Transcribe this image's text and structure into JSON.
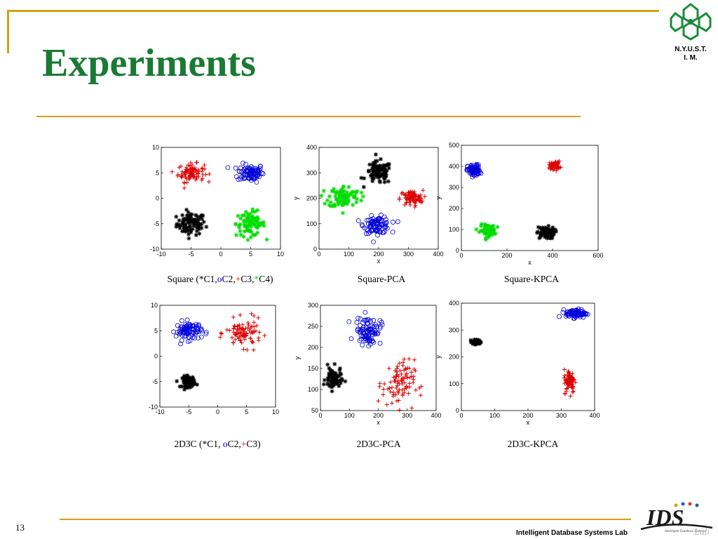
{
  "slide": {
    "title": "Experiments",
    "page_number": "13",
    "footer_lab": "Intelligent Database Systems Lab",
    "logo_line1": "N.Y.U.S.T.",
    "logo_line2": "I. M.",
    "ids_logo_text": "IDS",
    "ids_logo_small": "Intelligent Database Systems",
    "ids_logo_lab": "Lab"
  },
  "colors": {
    "title_green": "#1a7a33",
    "rule_gold": "#d4a017",
    "C1": "#000000",
    "C2": "#0000dd",
    "C3": "#dd0000",
    "C4": "#00dd00"
  },
  "captions": {
    "square_prefix": "Square (",
    "square_c1": "*",
    "square_c1_label": "C1,",
    "square_c2": "o",
    "square_c2_label": "C2,",
    "square_c3": "+",
    "square_c3_label": "C3,",
    "square_c4": "*",
    "square_c4_label": "C4)",
    "square_pca": "Square-PCA",
    "square_kpca": "Square-KPCA",
    "d3c_prefix": "2D3C (",
    "d3c_c1": "*",
    "d3c_c1_label": "C1, ",
    "d3c_c2": "o",
    "d3c_c2_label": "C2,",
    "d3c_c3": "+",
    "d3c_c3_label": "C3)",
    "d3c_pca": "2D3C-PCA",
    "d3c_kpca": "2D3C-KPCA"
  },
  "chart_data": [
    {
      "type": "scatter",
      "id": "square",
      "title": "Square (*C1,oC2,+C3,*C4)",
      "xlim": [
        -10,
        10
      ],
      "ylim": [
        -10,
        10
      ],
      "xticks": [
        -10,
        -5,
        0,
        5,
        10
      ],
      "yticks": [
        -10,
        -5,
        0,
        5,
        10
      ],
      "xlabel": "",
      "ylabel": "",
      "series": [
        {
          "cluster": "C1",
          "marker": "*",
          "color": "#000000",
          "center": [
            -5,
            -5
          ],
          "spread": [
            2.2,
            2.0
          ],
          "count": 90
        },
        {
          "cluster": "C2",
          "marker": "o",
          "color": "#0000dd",
          "center": [
            5,
            5
          ],
          "spread": [
            2.0,
            1.6
          ],
          "count": 90
        },
        {
          "cluster": "C3",
          "marker": "+",
          "color": "#dd0000",
          "center": [
            -5,
            5
          ],
          "spread": [
            2.0,
            1.6
          ],
          "count": 90
        },
        {
          "cluster": "C4",
          "marker": "*",
          "color": "#00dd00",
          "center": [
            5,
            -5
          ],
          "spread": [
            2.2,
            2.2
          ],
          "count": 90
        }
      ]
    },
    {
      "type": "scatter",
      "id": "square-pca",
      "title": "Square-PCA",
      "xlim": [
        0,
        400
      ],
      "ylim": [
        0,
        400
      ],
      "xticks": [
        0,
        100,
        200,
        300,
        400
      ],
      "yticks": [
        0,
        100,
        200,
        300,
        400
      ],
      "xlabel": "x",
      "ylabel": "y",
      "series": [
        {
          "cluster": "C1",
          "marker": "*",
          "color": "#000000",
          "center": [
            200,
            300
          ],
          "spread": [
            40,
            40
          ],
          "count": 90
        },
        {
          "cluster": "C2",
          "marker": "o",
          "color": "#0000dd",
          "center": [
            195,
            95
          ],
          "spread": [
            40,
            30
          ],
          "count": 90
        },
        {
          "cluster": "C3",
          "marker": "+",
          "color": "#dd0000",
          "center": [
            310,
            200
          ],
          "spread": [
            35,
            28
          ],
          "count": 90
        },
        {
          "cluster": "C4",
          "marker": "*",
          "color": "#00dd00",
          "center": [
            85,
            205
          ],
          "spread": [
            48,
            40
          ],
          "count": 90
        }
      ]
    },
    {
      "type": "scatter",
      "id": "square-kpca",
      "title": "Square-KPCA",
      "xlim": [
        0,
        600
      ],
      "ylim": [
        0,
        500
      ],
      "xticks": [
        0,
        200,
        400,
        600
      ],
      "yticks": [
        0,
        100,
        200,
        300,
        400,
        500
      ],
      "xlabel": "x",
      "ylabel": "y",
      "series": [
        {
          "cluster": "C1",
          "marker": "*",
          "color": "#000000",
          "center": [
            370,
            85
          ],
          "spread": [
            35,
            25
          ],
          "count": 90
        },
        {
          "cluster": "C2",
          "marker": "o",
          "color": "#0000dd",
          "center": [
            55,
            380
          ],
          "spread": [
            25,
            25
          ],
          "count": 90
        },
        {
          "cluster": "C3",
          "marker": "+",
          "color": "#dd0000",
          "center": [
            410,
            405
          ],
          "spread": [
            22,
            18
          ],
          "count": 60
        },
        {
          "cluster": "C4",
          "marker": "*",
          "color": "#00dd00",
          "center": [
            115,
            95
          ],
          "spread": [
            30,
            25
          ],
          "count": 80
        }
      ]
    },
    {
      "type": "scatter",
      "id": "2d3c",
      "title": "2D3C (*C1, oC2,+C3)",
      "xlim": [
        -10,
        10
      ],
      "ylim": [
        -10,
        10
      ],
      "xticks": [
        -10,
        -5,
        0,
        5,
        10
      ],
      "yticks": [
        -10,
        -5,
        0,
        5,
        10
      ],
      "xlabel": "",
      "ylabel": "",
      "series": [
        {
          "cluster": "C1",
          "marker": "*",
          "color": "#000000",
          "center": [
            -5,
            -5
          ],
          "spread": [
            1.0,
            1.0
          ],
          "count": 80
        },
        {
          "cluster": "C2",
          "marker": "o",
          "color": "#0000dd",
          "center": [
            -5,
            5
          ],
          "spread": [
            2.0,
            1.6
          ],
          "count": 90
        },
        {
          "cluster": "C3",
          "marker": "+",
          "color": "#dd0000",
          "center": [
            4.5,
            4.5
          ],
          "spread": [
            2.8,
            2.4
          ],
          "count": 90
        }
      ]
    },
    {
      "type": "scatter",
      "id": "2d3c-pca",
      "title": "2D3C-PCA",
      "xlim": [
        0,
        400
      ],
      "ylim": [
        50,
        300
      ],
      "xticks": [
        0,
        100,
        200,
        300,
        400
      ],
      "yticks": [
        50,
        100,
        150,
        200,
        250,
        300
      ],
      "xlabel": "x",
      "ylabel": "y",
      "series": [
        {
          "cluster": "C1",
          "marker": "*",
          "color": "#000000",
          "center": [
            45,
            125
          ],
          "spread": [
            25,
            25
          ],
          "count": 80
        },
        {
          "cluster": "C2",
          "marker": "o",
          "color": "#0000dd",
          "center": [
            165,
            240
          ],
          "spread": [
            40,
            30
          ],
          "count": 90
        },
        {
          "cluster": "C3",
          "marker": "+",
          "color": "#dd0000",
          "center": [
            270,
            115
          ],
          "spread": [
            50,
            50
          ],
          "count": 90
        }
      ]
    },
    {
      "type": "scatter",
      "id": "2d3c-kpca",
      "title": "2D3C-KPCA",
      "xlim": [
        0,
        400
      ],
      "ylim": [
        0,
        400
      ],
      "xticks": [
        0,
        100,
        200,
        300,
        400
      ],
      "yticks": [
        0,
        100,
        200,
        300,
        400
      ],
      "xlabel": "x",
      "ylabel": "y",
      "series": [
        {
          "cluster": "C1",
          "marker": "*",
          "color": "#000000",
          "center": [
            45,
            255
          ],
          "spread": [
            12,
            8
          ],
          "count": 60
        },
        {
          "cluster": "C2",
          "marker": "o",
          "color": "#0000dd",
          "center": [
            345,
            362
          ],
          "spread": [
            28,
            14
          ],
          "count": 80
        },
        {
          "cluster": "C3",
          "marker": "+",
          "color": "#dd0000",
          "center": [
            325,
            110
          ],
          "spread": [
            15,
            40
          ],
          "count": 80
        }
      ]
    }
  ]
}
